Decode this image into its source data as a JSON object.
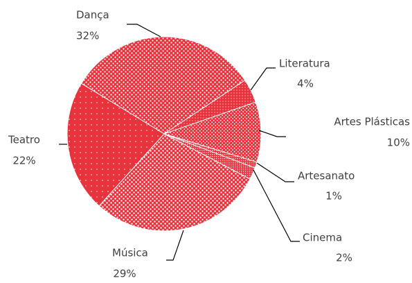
{
  "chart_data": {
    "type": "pie",
    "categories": [
      "Dança",
      "Literatura",
      "Artes Plásticas",
      "Artesanato",
      "Cinema",
      "Música",
      "Teatro"
    ],
    "values": [
      32,
      4,
      10,
      1,
      2,
      29,
      22
    ],
    "value_labels": [
      "32%",
      "4%",
      "10%",
      "1%",
      "2%",
      "29%",
      "22%"
    ],
    "color": "#e8323c"
  }
}
